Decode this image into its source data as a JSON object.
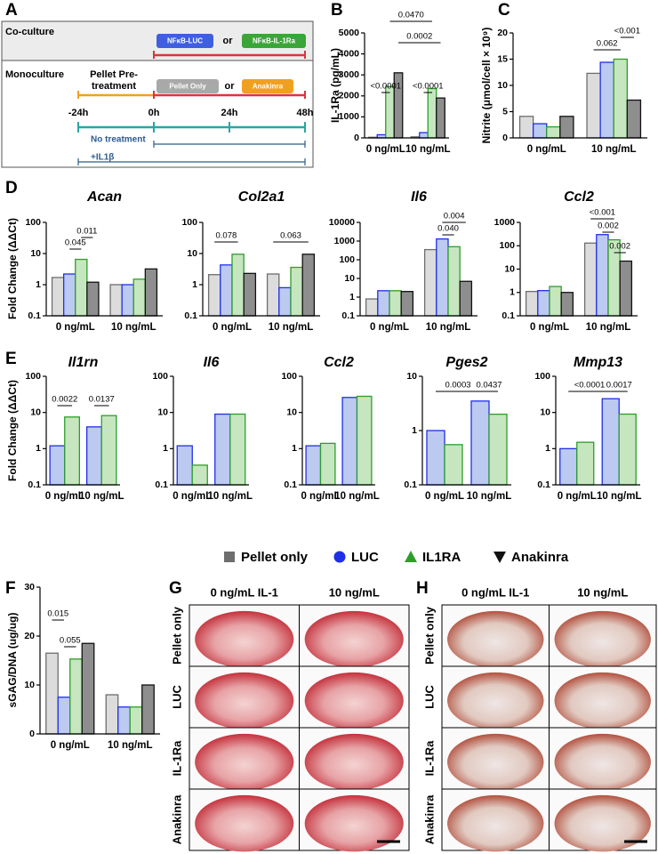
{
  "panels": [
    "A",
    "B",
    "C",
    "D",
    "E",
    "F",
    "G",
    "H"
  ],
  "diagram": {
    "coculture": {
      "label": "Co-culture",
      "options": [
        "NFκB-LUC",
        "or",
        "NFκB-IL-1Ra"
      ]
    },
    "monoculture": {
      "label": "Monoculture",
      "pretreatment": [
        "Pellet Pre-",
        "treatment"
      ],
      "options": [
        "Pellet Only",
        "or",
        "Anakinra"
      ]
    },
    "timepoints": [
      "-24h",
      "0h",
      "24h",
      "48h"
    ],
    "conditions": [
      "No treatment",
      "+IL1β"
    ]
  },
  "legend": [
    {
      "name": "Pellet only",
      "color": "#6e6e6e",
      "marker": "square"
    },
    {
      "name": "LUC",
      "color": "#1f2fe8",
      "marker": "circle"
    },
    {
      "name": "IL1RA",
      "color": "#2e9e2a",
      "marker": "triangle"
    },
    {
      "name": "Anakinra",
      "color": "#111111",
      "marker": "triangle-down"
    }
  ],
  "histology": [
    {
      "columns": [
        "0 ng/mL IL-1",
        "10 ng/mL"
      ],
      "rows": [
        "Pellet only",
        "LUC",
        "IL-1Ra",
        "Anakinra"
      ]
    },
    {
      "columns": [
        "0 ng/mL IL-1",
        "10 ng/mL"
      ],
      "rows": [
        "Pellet only",
        "LUC",
        "IL-1Ra",
        "Anakinra"
      ]
    }
  ],
  "chart_data": [
    {
      "type": "bar",
      "ylabel": "IL-1Ra (pg/mL)",
      "categories": [
        "0 ng/mL",
        "10 ng/mL"
      ],
      "yscale": "linear",
      "ylim": [
        0,
        5000
      ],
      "yticks": [
        0,
        1000,
        2000,
        3000,
        4000,
        5000
      ],
      "series": [
        {
          "color": "#6e6e6e",
          "fill": "#dcdcdc",
          "values": [
            30,
            50
          ]
        },
        {
          "color": "#1f2fe8",
          "fill": "#bccaf2",
          "values": [
            150,
            250
          ]
        },
        {
          "color": "#2e9e2a",
          "fill": "#c6e6bf",
          "values": [
            2450,
            2350
          ]
        },
        {
          "color": "#111111",
          "fill": "#8e8e8e",
          "values": [
            3100,
            1900
          ]
        }
      ],
      "annotations": [
        "<0.0001",
        "0.0470",
        "0.0002",
        "<0.0001"
      ]
    },
    {
      "type": "bar",
      "ylabel": "Nitrite (μmol/cell × 10⁹)",
      "categories": [
        "0 ng/mL",
        "10 ng/mL"
      ],
      "yscale": "linear",
      "ylim": [
        0,
        20
      ],
      "yticks": [
        0,
        5,
        10,
        15,
        20
      ],
      "series": [
        {
          "color": "#6e6e6e",
          "fill": "#dcdcdc",
          "values": [
            4.1,
            12.3
          ]
        },
        {
          "color": "#1f2fe8",
          "fill": "#bccaf2",
          "values": [
            2.7,
            14.4
          ]
        },
        {
          "color": "#2e9e2a",
          "fill": "#c6e6bf",
          "values": [
            2.1,
            15
          ]
        },
        {
          "color": "#111111",
          "fill": "#8e8e8e",
          "values": [
            4.1,
            7.2
          ]
        }
      ],
      "annotations": [
        "0.062",
        "<0.001"
      ]
    },
    {
      "type": "bar",
      "title": "Acan",
      "ylabel": "Fold Change (ΔΔCt)",
      "categories": [
        "0 ng/mL",
        "10 ng/mL"
      ],
      "yscale": "log",
      "ylim": [
        0.1,
        100
      ],
      "yticks": [
        0.1,
        1,
        10,
        100
      ],
      "series": [
        {
          "color": "#6e6e6e",
          "fill": "#dcdcdc",
          "values": [
            1.7,
            1.0
          ]
        },
        {
          "color": "#1f2fe8",
          "fill": "#bccaf2",
          "values": [
            2.2,
            1.0
          ]
        },
        {
          "color": "#2e9e2a",
          "fill": "#c6e6bf",
          "values": [
            6.5,
            1.5
          ]
        },
        {
          "color": "#111111",
          "fill": "#8e8e8e",
          "values": [
            1.2,
            3.2
          ]
        }
      ],
      "annotations": [
        "0.011",
        "0.045"
      ]
    },
    {
      "type": "bar",
      "title": "Col2a1",
      "categories": [
        "0 ng/mL",
        "10 ng/mL"
      ],
      "yscale": "log",
      "ylim": [
        0.1,
        100
      ],
      "yticks": [
        0.1,
        1,
        10,
        100
      ],
      "series": [
        {
          "color": "#6e6e6e",
          "fill": "#dcdcdc",
          "values": [
            2.1,
            2.2
          ]
        },
        {
          "color": "#1f2fe8",
          "fill": "#bccaf2",
          "values": [
            4.3,
            0.8
          ]
        },
        {
          "color": "#2e9e2a",
          "fill": "#c6e6bf",
          "values": [
            9.5,
            3.6
          ]
        },
        {
          "color": "#111111",
          "fill": "#8e8e8e",
          "values": [
            2.3,
            9.5
          ]
        }
      ],
      "annotations": [
        "0.078",
        "0.063"
      ]
    },
    {
      "type": "bar",
      "title": "Il6",
      "categories": [
        "0 ng/mL",
        "10 ng/mL"
      ],
      "yscale": "log",
      "ylim": [
        0.1,
        10000
      ],
      "yticks": [
        0.1,
        1,
        10,
        100,
        1000,
        10000
      ],
      "series": [
        {
          "color": "#6e6e6e",
          "fill": "#dcdcdc",
          "values": [
            0.8,
            350
          ]
        },
        {
          "color": "#1f2fe8",
          "fill": "#bccaf2",
          "values": [
            2.2,
            1300
          ]
        },
        {
          "color": "#2e9e2a",
          "fill": "#c6e6bf",
          "values": [
            2.2,
            500
          ]
        },
        {
          "color": "#111111",
          "fill": "#8e8e8e",
          "values": [
            2.0,
            7
          ]
        }
      ],
      "annotations": [
        "0.004",
        "0.040"
      ]
    },
    {
      "type": "bar",
      "title": "Ccl2",
      "categories": [
        "0 ng/mL",
        "10 ng/mL"
      ],
      "yscale": "log",
      "ylim": [
        0.1,
        1000
      ],
      "yticks": [
        0.1,
        1,
        10,
        100,
        1000
      ],
      "series": [
        {
          "color": "#6e6e6e",
          "fill": "#dcdcdc",
          "values": [
            1.1,
            130
          ]
        },
        {
          "color": "#1f2fe8",
          "fill": "#bccaf2",
          "values": [
            1.2,
            300
          ]
        },
        {
          "color": "#2e9e2a",
          "fill": "#c6e6bf",
          "values": [
            1.8,
            180
          ]
        },
        {
          "color": "#111111",
          "fill": "#8e8e8e",
          "values": [
            1.0,
            22
          ]
        }
      ],
      "annotations": [
        "<0.001",
        "0.002",
        "0.002"
      ]
    },
    {
      "type": "bar",
      "title": "Il1rn",
      "ylabel": "Fold Change (ΔΔCt)",
      "categories": [
        "0 ng/mL",
        "10 ng/mL"
      ],
      "yscale": "log",
      "ylim": [
        0.1,
        100
      ],
      "yticks": [
        0.1,
        1,
        10,
        100
      ],
      "series": [
        {
          "color": "#1f2fe8",
          "fill": "#bccaf2",
          "values": [
            1.2,
            4.0
          ]
        },
        {
          "color": "#2e9e2a",
          "fill": "#c6e6bf",
          "values": [
            7.5,
            8.2
          ]
        }
      ],
      "annotations": [
        "0.0022",
        "0.0137"
      ]
    },
    {
      "type": "bar",
      "title": "Il6",
      "categories": [
        "0 ng/mL",
        "10 ng/mL"
      ],
      "yscale": "log",
      "ylim": [
        0.1,
        100
      ],
      "yticks": [
        0.1,
        1,
        10,
        100
      ],
      "series": [
        {
          "color": "#1f2fe8",
          "fill": "#bccaf2",
          "values": [
            1.2,
            9
          ]
        },
        {
          "color": "#2e9e2a",
          "fill": "#c6e6bf",
          "values": [
            0.35,
            9
          ]
        }
      ]
    },
    {
      "type": "bar",
      "title": "Ccl2",
      "categories": [
        "0 ng/mL",
        "10 ng/mL"
      ],
      "yscale": "log",
      "ylim": [
        0.1,
        100
      ],
      "yticks": [
        0.1,
        1,
        10,
        100
      ],
      "series": [
        {
          "color": "#1f2fe8",
          "fill": "#bccaf2",
          "values": [
            1.2,
            26
          ]
        },
        {
          "color": "#2e9e2a",
          "fill": "#c6e6bf",
          "values": [
            1.4,
            28
          ]
        }
      ]
    },
    {
      "type": "bar",
      "title": "Pges2",
      "categories": [
        "0 ng/mL",
        "10 ng/mL"
      ],
      "yscale": "log",
      "ylim": [
        0.1,
        10
      ],
      "yticks": [
        0.1,
        1,
        10
      ],
      "series": [
        {
          "color": "#1f2fe8",
          "fill": "#bccaf2",
          "values": [
            1.0,
            3.5
          ]
        },
        {
          "color": "#2e9e2a",
          "fill": "#c6e6bf",
          "values": [
            0.55,
            2.0
          ]
        }
      ],
      "annotations": [
        "0.0003",
        "0.0437"
      ]
    },
    {
      "type": "bar",
      "title": "Mmp13",
      "categories": [
        "0 ng/mL",
        "10 ng/mL"
      ],
      "yscale": "log",
      "ylim": [
        0.1,
        100
      ],
      "yticks": [
        0.1,
        1,
        10,
        100
      ],
      "series": [
        {
          "color": "#1f2fe8",
          "fill": "#bccaf2",
          "values": [
            1.0,
            24
          ]
        },
        {
          "color": "#2e9e2a",
          "fill": "#c6e6bf",
          "values": [
            1.5,
            9
          ]
        }
      ],
      "annotations": [
        "<0.0001",
        "0.0017"
      ]
    },
    {
      "type": "bar",
      "ylabel": "sGAG/DNA (ug/ug)",
      "categories": [
        "0 ng/mL",
        "10 ng/mL"
      ],
      "yscale": "linear",
      "ylim": [
        0,
        30
      ],
      "yticks": [
        0,
        10,
        20,
        30
      ],
      "series": [
        {
          "color": "#6e6e6e",
          "fill": "#dcdcdc",
          "values": [
            16.5,
            8
          ]
        },
        {
          "color": "#1f2fe8",
          "fill": "#bccaf2",
          "values": [
            7.5,
            5.5
          ]
        },
        {
          "color": "#2e9e2a",
          "fill": "#c6e6bf",
          "values": [
            15.3,
            5.5
          ]
        },
        {
          "color": "#111111",
          "fill": "#8e8e8e",
          "values": [
            18.5,
            10
          ]
        }
      ],
      "annotations": [
        "0.015",
        "0.055"
      ]
    }
  ]
}
